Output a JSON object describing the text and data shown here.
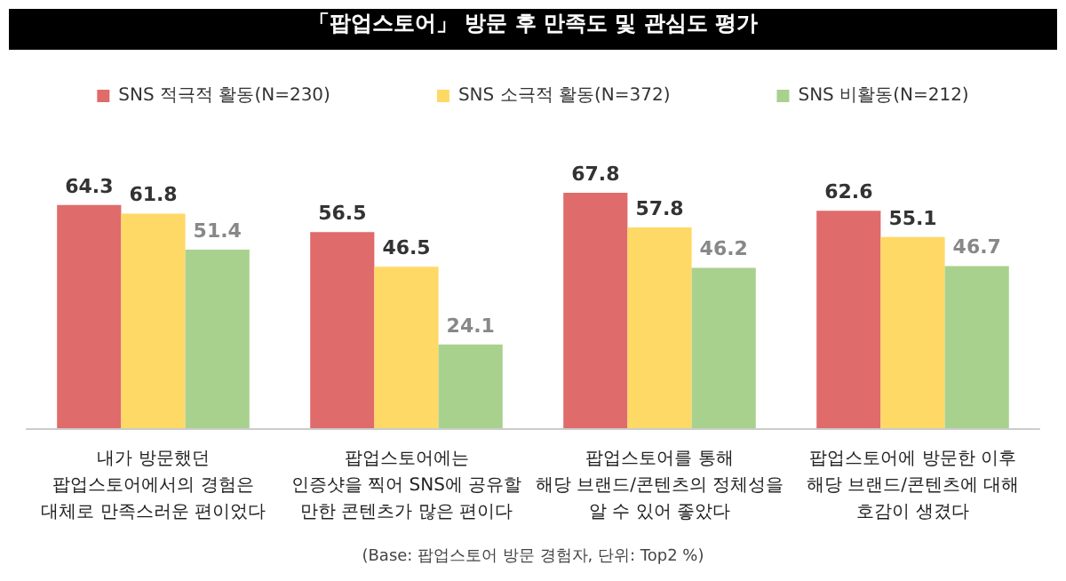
{
  "chart_data": {
    "type": "bar",
    "title": "「팝업스토어」 방문 후 만족도 및 관심도 평가",
    "categories": [
      "내가 방문했던\n팝업스토어에서의 경험은\n대체로 만족스러운 편이었다",
      "팝업스토어에는\n인증샷을 찍어 SNS에 공유할\n만한 콘텐츠가 많은 편이다",
      "팝업스토어를 통해\n해당 브랜드/콘텐츠의 정체성을\n알 수 있어 좋았다",
      "팝업스토어에 방문한 이후\n해당 브랜드/콘텐츠에 대해\n호감이 생겼다"
    ],
    "series": [
      {
        "name": "SNS 적극적 활동(N=230)",
        "color": "#e06b6b",
        "values": [
          64.3,
          56.5,
          67.8,
          62.6
        ]
      },
      {
        "name": "SNS 소극적 활동(N=372)",
        "color": "#ffd966",
        "values": [
          61.8,
          46.5,
          57.8,
          55.1
        ]
      },
      {
        "name": "SNS 비활동(N=212)",
        "color": "#a9d18e",
        "values": [
          51.4,
          24.1,
          46.2,
          46.7
        ]
      }
    ],
    "data_labels": true,
    "legend": "top",
    "annotations": [
      "(Base: 팝업스토어 방문 경험자, 단위: Top2 %)"
    ]
  }
}
